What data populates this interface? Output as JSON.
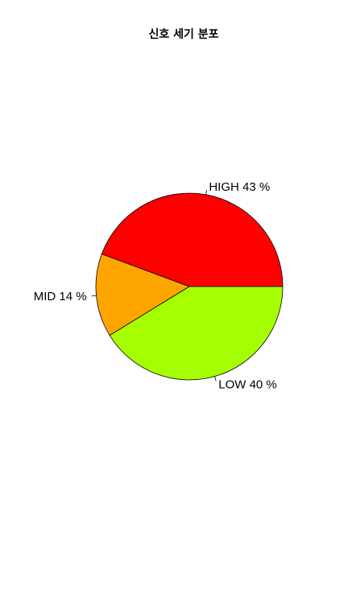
{
  "chart_data": {
    "type": "pie",
    "title": "신호 세기 분포",
    "direction": "counterclockwise",
    "start_angle_deg": 0,
    "slices": [
      {
        "category": "HIGH",
        "label": "HIGH 43 %",
        "percent": 43,
        "color": "#ff0000"
      },
      {
        "category": "MID",
        "label": "MID 14 %",
        "percent": 14,
        "color": "#ffa500"
      },
      {
        "category": "LOW",
        "label": "LOW 40 %",
        "percent": 40,
        "color": "#a6ff00"
      }
    ]
  }
}
